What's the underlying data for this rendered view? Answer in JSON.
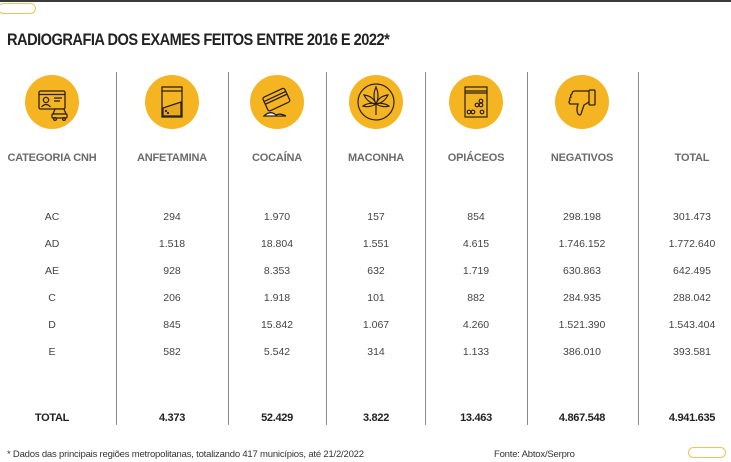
{
  "title": "RADIOGRAFIA DOS EXAMES FEITOS ENTRE 2016 E 2022*",
  "columns": [
    {
      "label": "CATEGORIA CNH",
      "icon": "driver-license-car-icon"
    },
    {
      "label": "ANFETAMINA",
      "icon": "powder-bag-icon"
    },
    {
      "label": "COCAÍNA",
      "icon": "card-powder-icon"
    },
    {
      "label": "MACONHA",
      "icon": "cannabis-leaf-icon"
    },
    {
      "label": "OPIÁCEOS",
      "icon": "pill-bag-icon"
    },
    {
      "label": "NEGATIVOS",
      "icon": "thumbs-down-icon"
    },
    {
      "label": "TOTAL",
      "icon": ""
    }
  ],
  "rows": [
    [
      "AC",
      "294",
      "1.970",
      "157",
      "854",
      "298.198",
      "301.473"
    ],
    [
      "AD",
      "1.518",
      "18.804",
      "1.551",
      "4.615",
      "1.746.152",
      "1.772.640"
    ],
    [
      "AE",
      "928",
      "8.353",
      "632",
      "1.719",
      "630.863",
      "642.495"
    ],
    [
      "C",
      "206",
      "1.918",
      "101",
      "882",
      "284.935",
      "288.042"
    ],
    [
      "D",
      "845",
      "15.842",
      "1.067",
      "4.260",
      "1.521.390",
      "1.543.404"
    ],
    [
      "E",
      "582",
      "5.542",
      "314",
      "1.133",
      "386.010",
      "393.581"
    ]
  ],
  "totals": [
    "TOTAL",
    "4.373",
    "52.429",
    "3.822",
    "13.463",
    "4.867.548",
    "4.941.635"
  ],
  "footnote": "* Dados das principais regiões metropolitanas, totalizando 417 municípios, até 21/2/2022",
  "source": "Fonte: Abtox/Serpro",
  "colors": {
    "accent": "#f5b523",
    "header_text": "#6b6b6b",
    "title_text": "#222222",
    "divider": "#8a8a8a"
  }
}
